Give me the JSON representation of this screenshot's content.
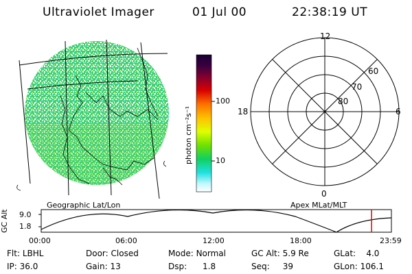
{
  "header": {
    "title": "Ultraviolet Imager",
    "date": "01 Jul 00",
    "time": "22:38:19 UT"
  },
  "colorbar": {
    "unit_label": "photon cm⁻²s⁻¹",
    "ticks": [
      "100",
      "10"
    ]
  },
  "polar_plot": {
    "mlt_labels": {
      "top": "12",
      "left": "18",
      "right": "6",
      "bottom": "0"
    },
    "lat_labels": [
      "60",
      "70",
      "80"
    ]
  },
  "panel_labels": {
    "left": "Geographic Lat/Lon",
    "right": "Apex MLat/MLT"
  },
  "altitude_plot": {
    "ylabel": "GC Alt",
    "y_ticks": [
      "9.0",
      "1.8"
    ],
    "x_ticks": [
      "00:00",
      "06:00",
      "12:00",
      "18:00",
      "23:59"
    ],
    "current_time_marker_hours": 22.64,
    "marker_color": "#e00000"
  },
  "status": {
    "row1": [
      {
        "label": "Flt:",
        "value": "LBHL"
      },
      {
        "label": "Door:",
        "value": "Closed"
      },
      {
        "label": "Mode:",
        "value": "Normal"
      },
      {
        "label": "GC Alt:",
        "value": "5.9 Re"
      },
      {
        "label": "GLat:",
        "value": "4.0"
      }
    ],
    "row2": [
      {
        "label": "IP:",
        "value": "36.0"
      },
      {
        "label": "Gain:",
        "value": "13"
      },
      {
        "label": "Dsp:",
        "value": "1.8"
      },
      {
        "label": "Seq:",
        "value": "39"
      },
      {
        "label": "GLon:",
        "value": "106.1"
      }
    ]
  },
  "colors": {
    "image_green": "#40d060",
    "image_cyan": "#50e0e0",
    "image_white": "#ffffff"
  }
}
